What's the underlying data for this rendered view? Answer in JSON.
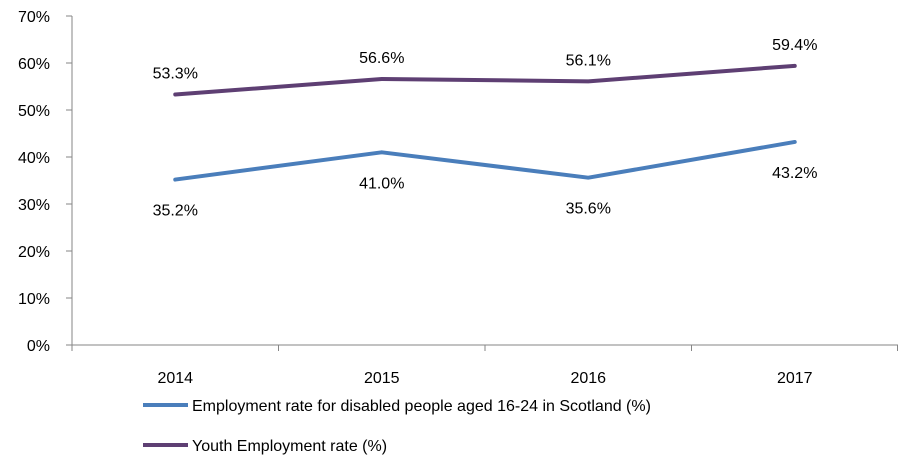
{
  "chart_data": {
    "type": "line",
    "categories": [
      "2014",
      "2015",
      "2016",
      "2017"
    ],
    "ylim": [
      0,
      70
    ],
    "yticks": [
      0,
      10,
      20,
      30,
      40,
      50,
      60,
      70
    ],
    "ytick_suffix": "%",
    "grid": false,
    "legend_position": "bottom",
    "series": [
      {
        "name": "Employment rate for disabled people aged 16-24 in Scotland (%)",
        "color": "#4a7ebb",
        "values": [
          35.2,
          41.0,
          35.6,
          43.2
        ],
        "labels": [
          "35.2%",
          "41.0%",
          "35.6%",
          "43.2%"
        ],
        "label_position": "below"
      },
      {
        "name": "Youth Employment rate (%)",
        "color": "#5e3f73",
        "values": [
          53.3,
          56.6,
          56.1,
          59.4
        ],
        "labels": [
          "53.3%",
          "56.6%",
          "56.1%",
          "59.4%"
        ],
        "label_position": "above"
      }
    ]
  }
}
